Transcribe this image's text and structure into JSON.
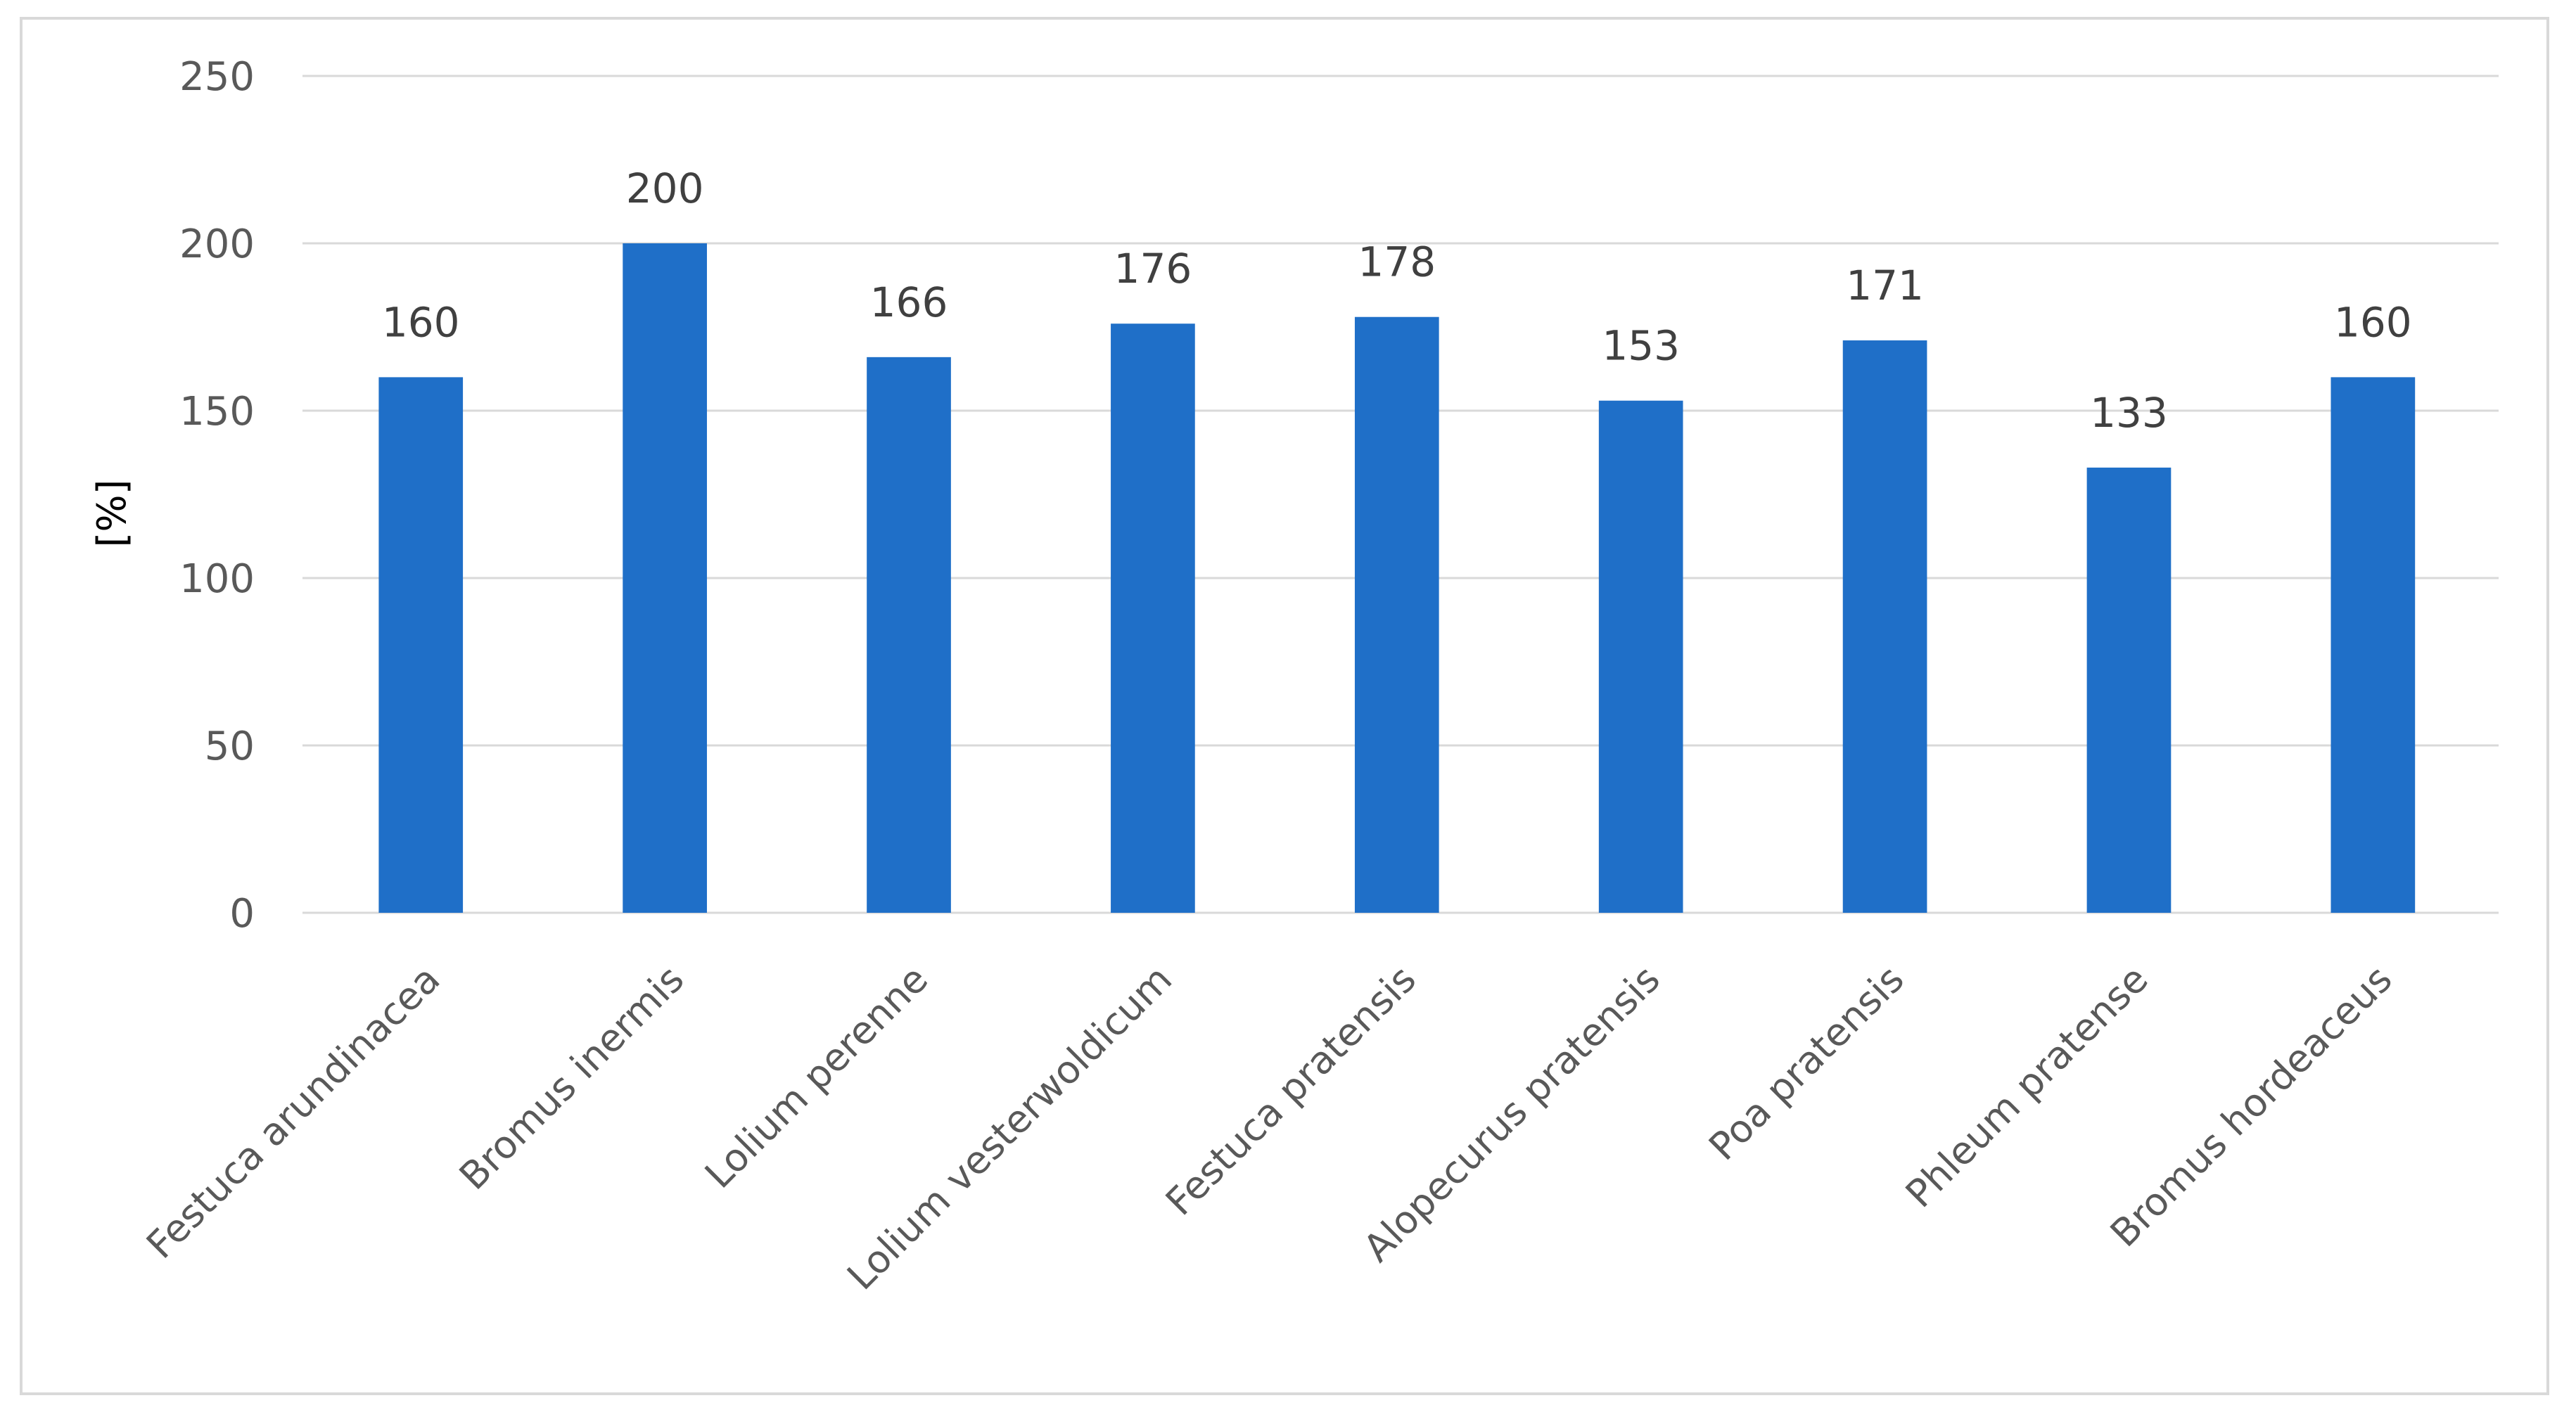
{
  "chart_data": {
    "type": "bar",
    "categories": [
      "Festuca arundinacea",
      "Bromus inermis",
      "Lolium perenne",
      "Lolium vesterwoldicum",
      "Festuca pratensis",
      "Alopecurus pratensis",
      "Poa pratensis",
      "Phleum pratense",
      "Bromus hordeaceus"
    ],
    "values": [
      160,
      200,
      166,
      176,
      178,
      153,
      171,
      133,
      160
    ],
    "data_labels": [
      "160",
      "200",
      "166",
      "176",
      "178",
      "153",
      "171",
      "133",
      "160"
    ],
    "title": "",
    "xlabel": "",
    "ylabel": "[%]",
    "ylim": [
      0,
      250
    ],
    "yticks": [
      0,
      50,
      100,
      150,
      200,
      250
    ],
    "ytick_labels": [
      "0",
      "50",
      "100",
      "150",
      "200",
      "250"
    ],
    "grid": true,
    "legend": "none",
    "bar_color": "#1f6fc8",
    "grid_color": "#d9d9d9",
    "label_rotation_deg": -45
  }
}
